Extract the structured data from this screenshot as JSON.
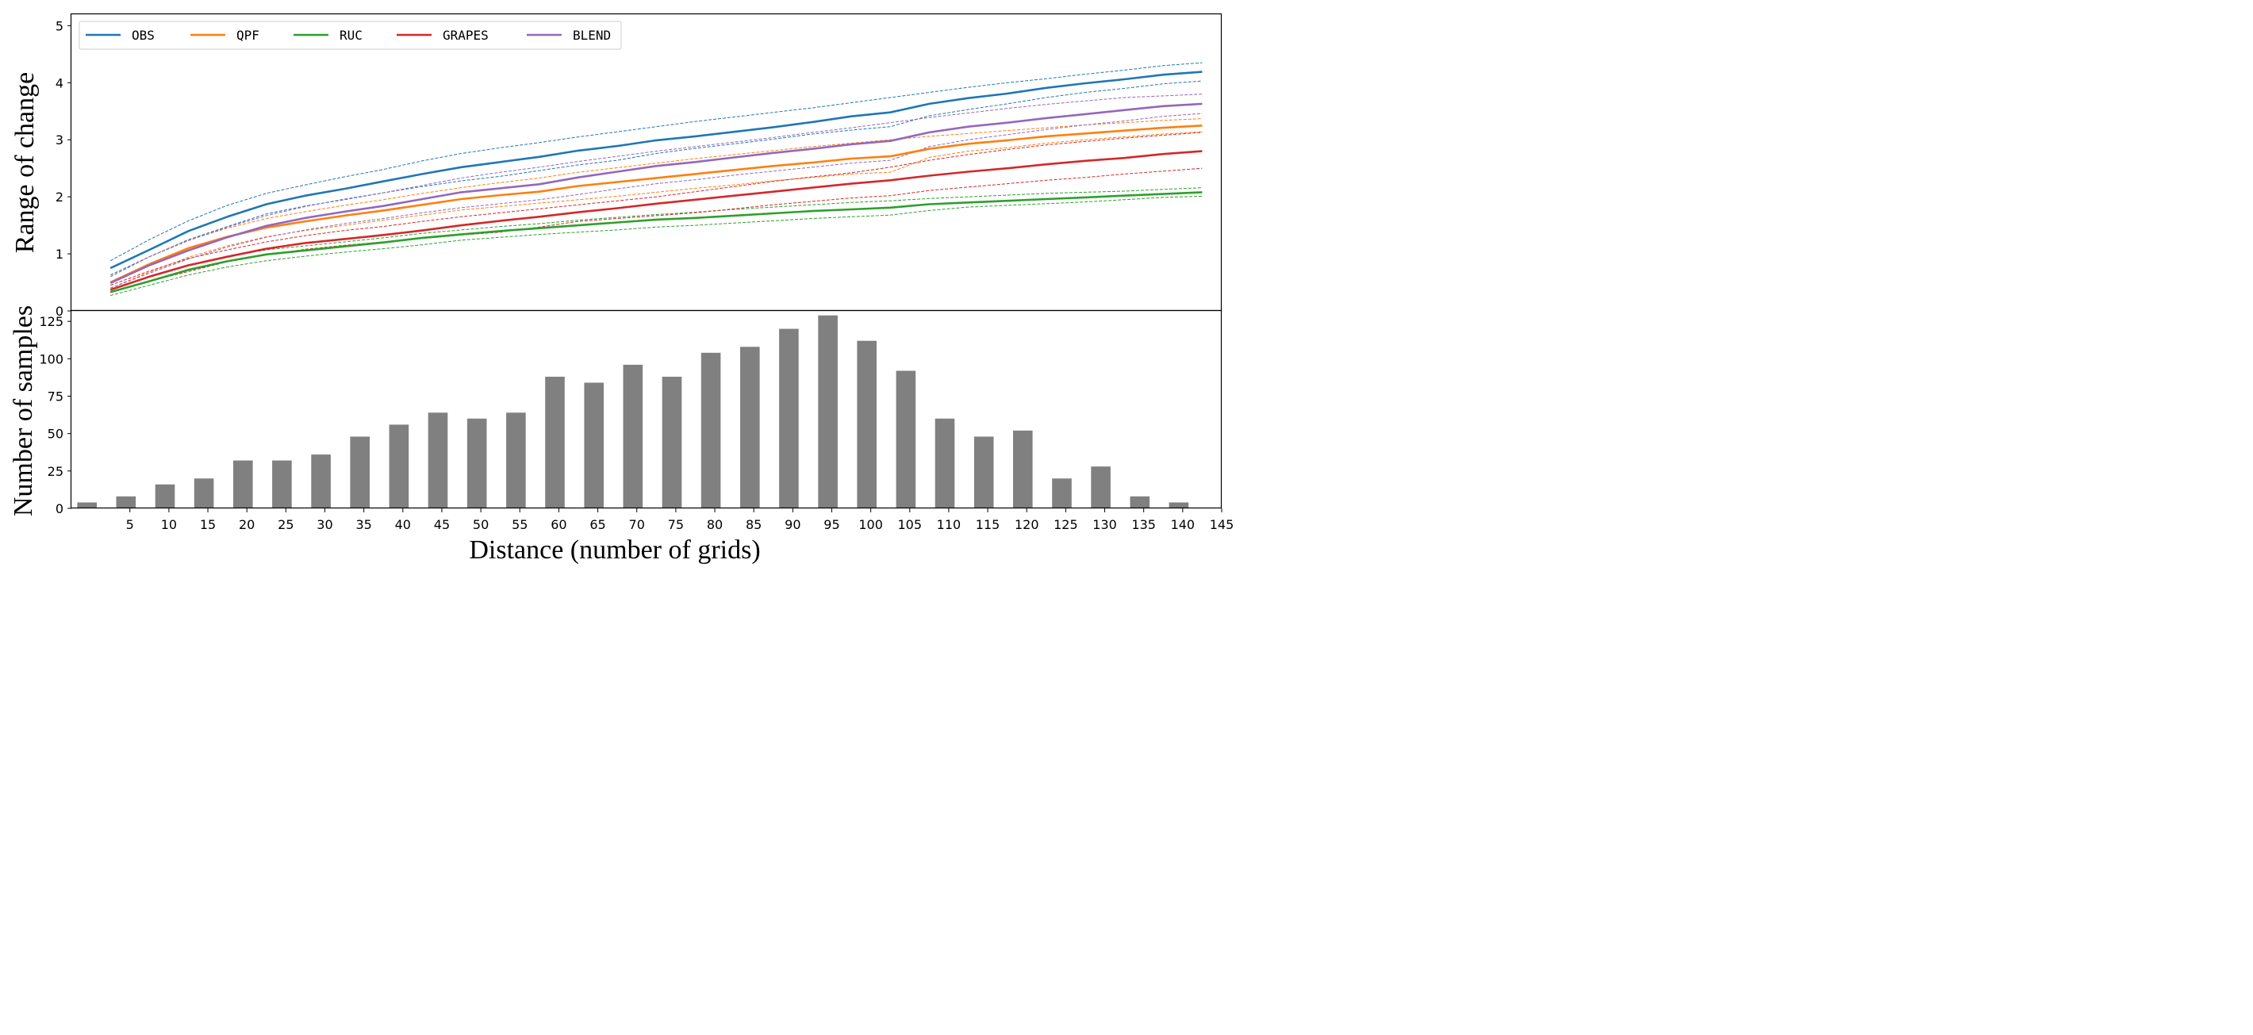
{
  "chart_data": [
    {
      "type": "line",
      "ylabel": "Range of change",
      "ylim": [
        0,
        5.2
      ],
      "yticks": [
        "0",
        "1",
        "2",
        "3",
        "4",
        "5"
      ],
      "grid": false,
      "legend": "top-left",
      "x": [
        2.5,
        7.5,
        12.5,
        17.5,
        22.5,
        27.5,
        32.5,
        37.5,
        42.5,
        47.5,
        52.5,
        57.5,
        62.5,
        67.5,
        72.5,
        77.5,
        82.5,
        87.5,
        92.5,
        97.5,
        102.5,
        107.5,
        112.5,
        117.5,
        122.5,
        127.5,
        132.5,
        137.5,
        142.5
      ],
      "series": [
        {
          "name": "OBS",
          "color": "#1f77b4",
          "values": [
            0.75,
            1.07,
            1.4,
            1.65,
            1.87,
            2.02,
            2.14,
            2.27,
            2.4,
            2.52,
            2.61,
            2.7,
            2.81,
            2.89,
            2.99,
            3.06,
            3.14,
            3.22,
            3.31,
            3.41,
            3.48,
            3.63,
            3.73,
            3.81,
            3.91,
            3.99,
            4.06,
            4.14,
            4.19
          ],
          "upper": [
            0.88,
            1.25,
            1.58,
            1.85,
            2.06,
            2.21,
            2.35,
            2.48,
            2.63,
            2.76,
            2.86,
            2.95,
            3.05,
            3.14,
            3.23,
            3.32,
            3.4,
            3.48,
            3.56,
            3.65,
            3.74,
            3.83,
            3.92,
            4.0,
            4.07,
            4.15,
            4.22,
            4.3,
            4.35
          ],
          "lower": [
            0.63,
            0.95,
            1.25,
            1.48,
            1.7,
            1.84,
            1.95,
            2.07,
            2.18,
            2.28,
            2.36,
            2.46,
            2.56,
            2.64,
            2.76,
            2.85,
            2.93,
            3.01,
            3.1,
            3.17,
            3.23,
            3.42,
            3.53,
            3.63,
            3.74,
            3.83,
            3.9,
            3.98,
            4.03
          ]
        },
        {
          "name": "QPF",
          "color": "#ff7f0e",
          "values": [
            0.5,
            0.82,
            1.1,
            1.3,
            1.46,
            1.57,
            1.67,
            1.76,
            1.86,
            1.96,
            2.03,
            2.09,
            2.19,
            2.26,
            2.33,
            2.4,
            2.47,
            2.54,
            2.6,
            2.67,
            2.71,
            2.84,
            2.93,
            2.99,
            3.06,
            3.11,
            3.16,
            3.21,
            3.25
          ],
          "upper": [
            0.6,
            0.95,
            1.24,
            1.45,
            1.62,
            1.74,
            1.85,
            1.95,
            2.06,
            2.16,
            2.25,
            2.33,
            2.43,
            2.51,
            2.59,
            2.67,
            2.74,
            2.81,
            2.88,
            2.94,
            3.0,
            3.06,
            3.11,
            3.16,
            3.21,
            3.26,
            3.3,
            3.34,
            3.37
          ],
          "lower": [
            0.4,
            0.68,
            0.94,
            1.14,
            1.3,
            1.41,
            1.5,
            1.59,
            1.68,
            1.77,
            1.83,
            1.89,
            1.95,
            2.01,
            2.08,
            2.15,
            2.21,
            2.28,
            2.34,
            2.4,
            2.43,
            2.69,
            2.8,
            2.86,
            2.94,
            3.0,
            3.05,
            3.1,
            3.14
          ]
        },
        {
          "name": "RUC",
          "color": "#2ca02c",
          "values": [
            0.33,
            0.52,
            0.72,
            0.87,
            0.99,
            1.06,
            1.13,
            1.2,
            1.28,
            1.34,
            1.4,
            1.45,
            1.5,
            1.55,
            1.6,
            1.63,
            1.67,
            1.71,
            1.75,
            1.78,
            1.81,
            1.87,
            1.9,
            1.93,
            1.96,
            1.99,
            2.02,
            2.05,
            2.08
          ],
          "upper": [
            0.38,
            0.59,
            0.79,
            0.95,
            1.07,
            1.14,
            1.21,
            1.28,
            1.36,
            1.42,
            1.48,
            1.53,
            1.59,
            1.64,
            1.69,
            1.73,
            1.78,
            1.82,
            1.86,
            1.9,
            1.93,
            1.97,
            2.0,
            2.03,
            2.06,
            2.08,
            2.1,
            2.13,
            2.16
          ],
          "lower": [
            0.27,
            0.45,
            0.63,
            0.77,
            0.88,
            0.96,
            1.03,
            1.09,
            1.16,
            1.24,
            1.29,
            1.34,
            1.38,
            1.42,
            1.47,
            1.5,
            1.54,
            1.58,
            1.62,
            1.65,
            1.68,
            1.76,
            1.82,
            1.85,
            1.88,
            1.91,
            1.95,
            1.99,
            2.01
          ]
        },
        {
          "name": "GRAPES",
          "color": "#d62728",
          "values": [
            0.37,
            0.6,
            0.8,
            0.95,
            1.09,
            1.19,
            1.26,
            1.33,
            1.41,
            1.5,
            1.58,
            1.65,
            1.73,
            1.8,
            1.88,
            1.95,
            2.02,
            2.09,
            2.16,
            2.23,
            2.29,
            2.37,
            2.44,
            2.5,
            2.57,
            2.63,
            2.68,
            2.75,
            2.8
          ],
          "upper": [
            0.45,
            0.7,
            0.92,
            1.07,
            1.21,
            1.32,
            1.41,
            1.48,
            1.57,
            1.65,
            1.72,
            1.79,
            1.86,
            1.93,
            2.0,
            2.09,
            2.18,
            2.27,
            2.35,
            2.42,
            2.52,
            2.64,
            2.74,
            2.83,
            2.91,
            2.97,
            3.03,
            3.08,
            3.13
          ],
          "lower": [
            0.32,
            0.52,
            0.69,
            0.86,
            0.98,
            1.08,
            1.15,
            1.21,
            1.27,
            1.33,
            1.38,
            1.47,
            1.57,
            1.62,
            1.67,
            1.72,
            1.79,
            1.86,
            1.92,
            1.98,
            2.02,
            2.11,
            2.17,
            2.23,
            2.29,
            2.34,
            2.4,
            2.45,
            2.5
          ]
        },
        {
          "name": "BLEND",
          "color": "#9467bd",
          "values": [
            0.49,
            0.8,
            1.06,
            1.29,
            1.49,
            1.63,
            1.74,
            1.84,
            1.96,
            2.08,
            2.15,
            2.22,
            2.34,
            2.44,
            2.54,
            2.61,
            2.69,
            2.77,
            2.84,
            2.92,
            2.98,
            3.13,
            3.23,
            3.3,
            3.38,
            3.45,
            3.52,
            3.59,
            3.63
          ],
          "upper": [
            0.6,
            0.95,
            1.23,
            1.47,
            1.67,
            1.83,
            1.96,
            2.07,
            2.2,
            2.33,
            2.43,
            2.52,
            2.62,
            2.71,
            2.8,
            2.88,
            2.96,
            3.04,
            3.13,
            3.21,
            3.3,
            3.39,
            3.47,
            3.55,
            3.62,
            3.68,
            3.74,
            3.77,
            3.8
          ],
          "lower": [
            0.4,
            0.66,
            0.91,
            1.12,
            1.29,
            1.42,
            1.53,
            1.62,
            1.72,
            1.81,
            1.88,
            1.95,
            2.04,
            2.14,
            2.23,
            2.3,
            2.38,
            2.45,
            2.52,
            2.59,
            2.64,
            2.88,
            3.0,
            3.09,
            3.18,
            3.26,
            3.33,
            3.41,
            3.46
          ]
        }
      ]
    },
    {
      "type": "bar",
      "ylabel": "Number of samples",
      "xlabel": "Distance (number of grids)",
      "bar_color": "#808080",
      "ylim": [
        0,
        132
      ],
      "yticks": [
        "0",
        "25",
        "50",
        "75",
        "100",
        "125"
      ],
      "xlim": [
        -2.5,
        145
      ],
      "xticks": [
        "5",
        "10",
        "15",
        "20",
        "25",
        "30",
        "35",
        "40",
        "45",
        "50",
        "55",
        "60",
        "65",
        "70",
        "75",
        "80",
        "85",
        "90",
        "95",
        "100",
        "105",
        "110",
        "115",
        "120",
        "125",
        "130",
        "135",
        "140",
        "145"
      ],
      "categories": [
        -0.5,
        4.5,
        9.5,
        14.5,
        19.5,
        24.5,
        29.5,
        34.5,
        39.5,
        44.5,
        49.5,
        54.5,
        59.5,
        64.5,
        69.5,
        74.5,
        79.5,
        84.5,
        89.5,
        94.5,
        99.5,
        104.5,
        109.5,
        114.5,
        119.5,
        124.5,
        129.5,
        134.5,
        139.5
      ],
      "values": [
        4,
        8,
        16,
        20,
        32,
        32,
        36,
        48,
        56,
        64,
        60,
        64,
        88,
        84,
        96,
        88,
        104,
        108,
        120,
        129,
        112,
        92,
        60,
        48,
        52,
        20,
        28,
        8,
        4
      ]
    }
  ]
}
